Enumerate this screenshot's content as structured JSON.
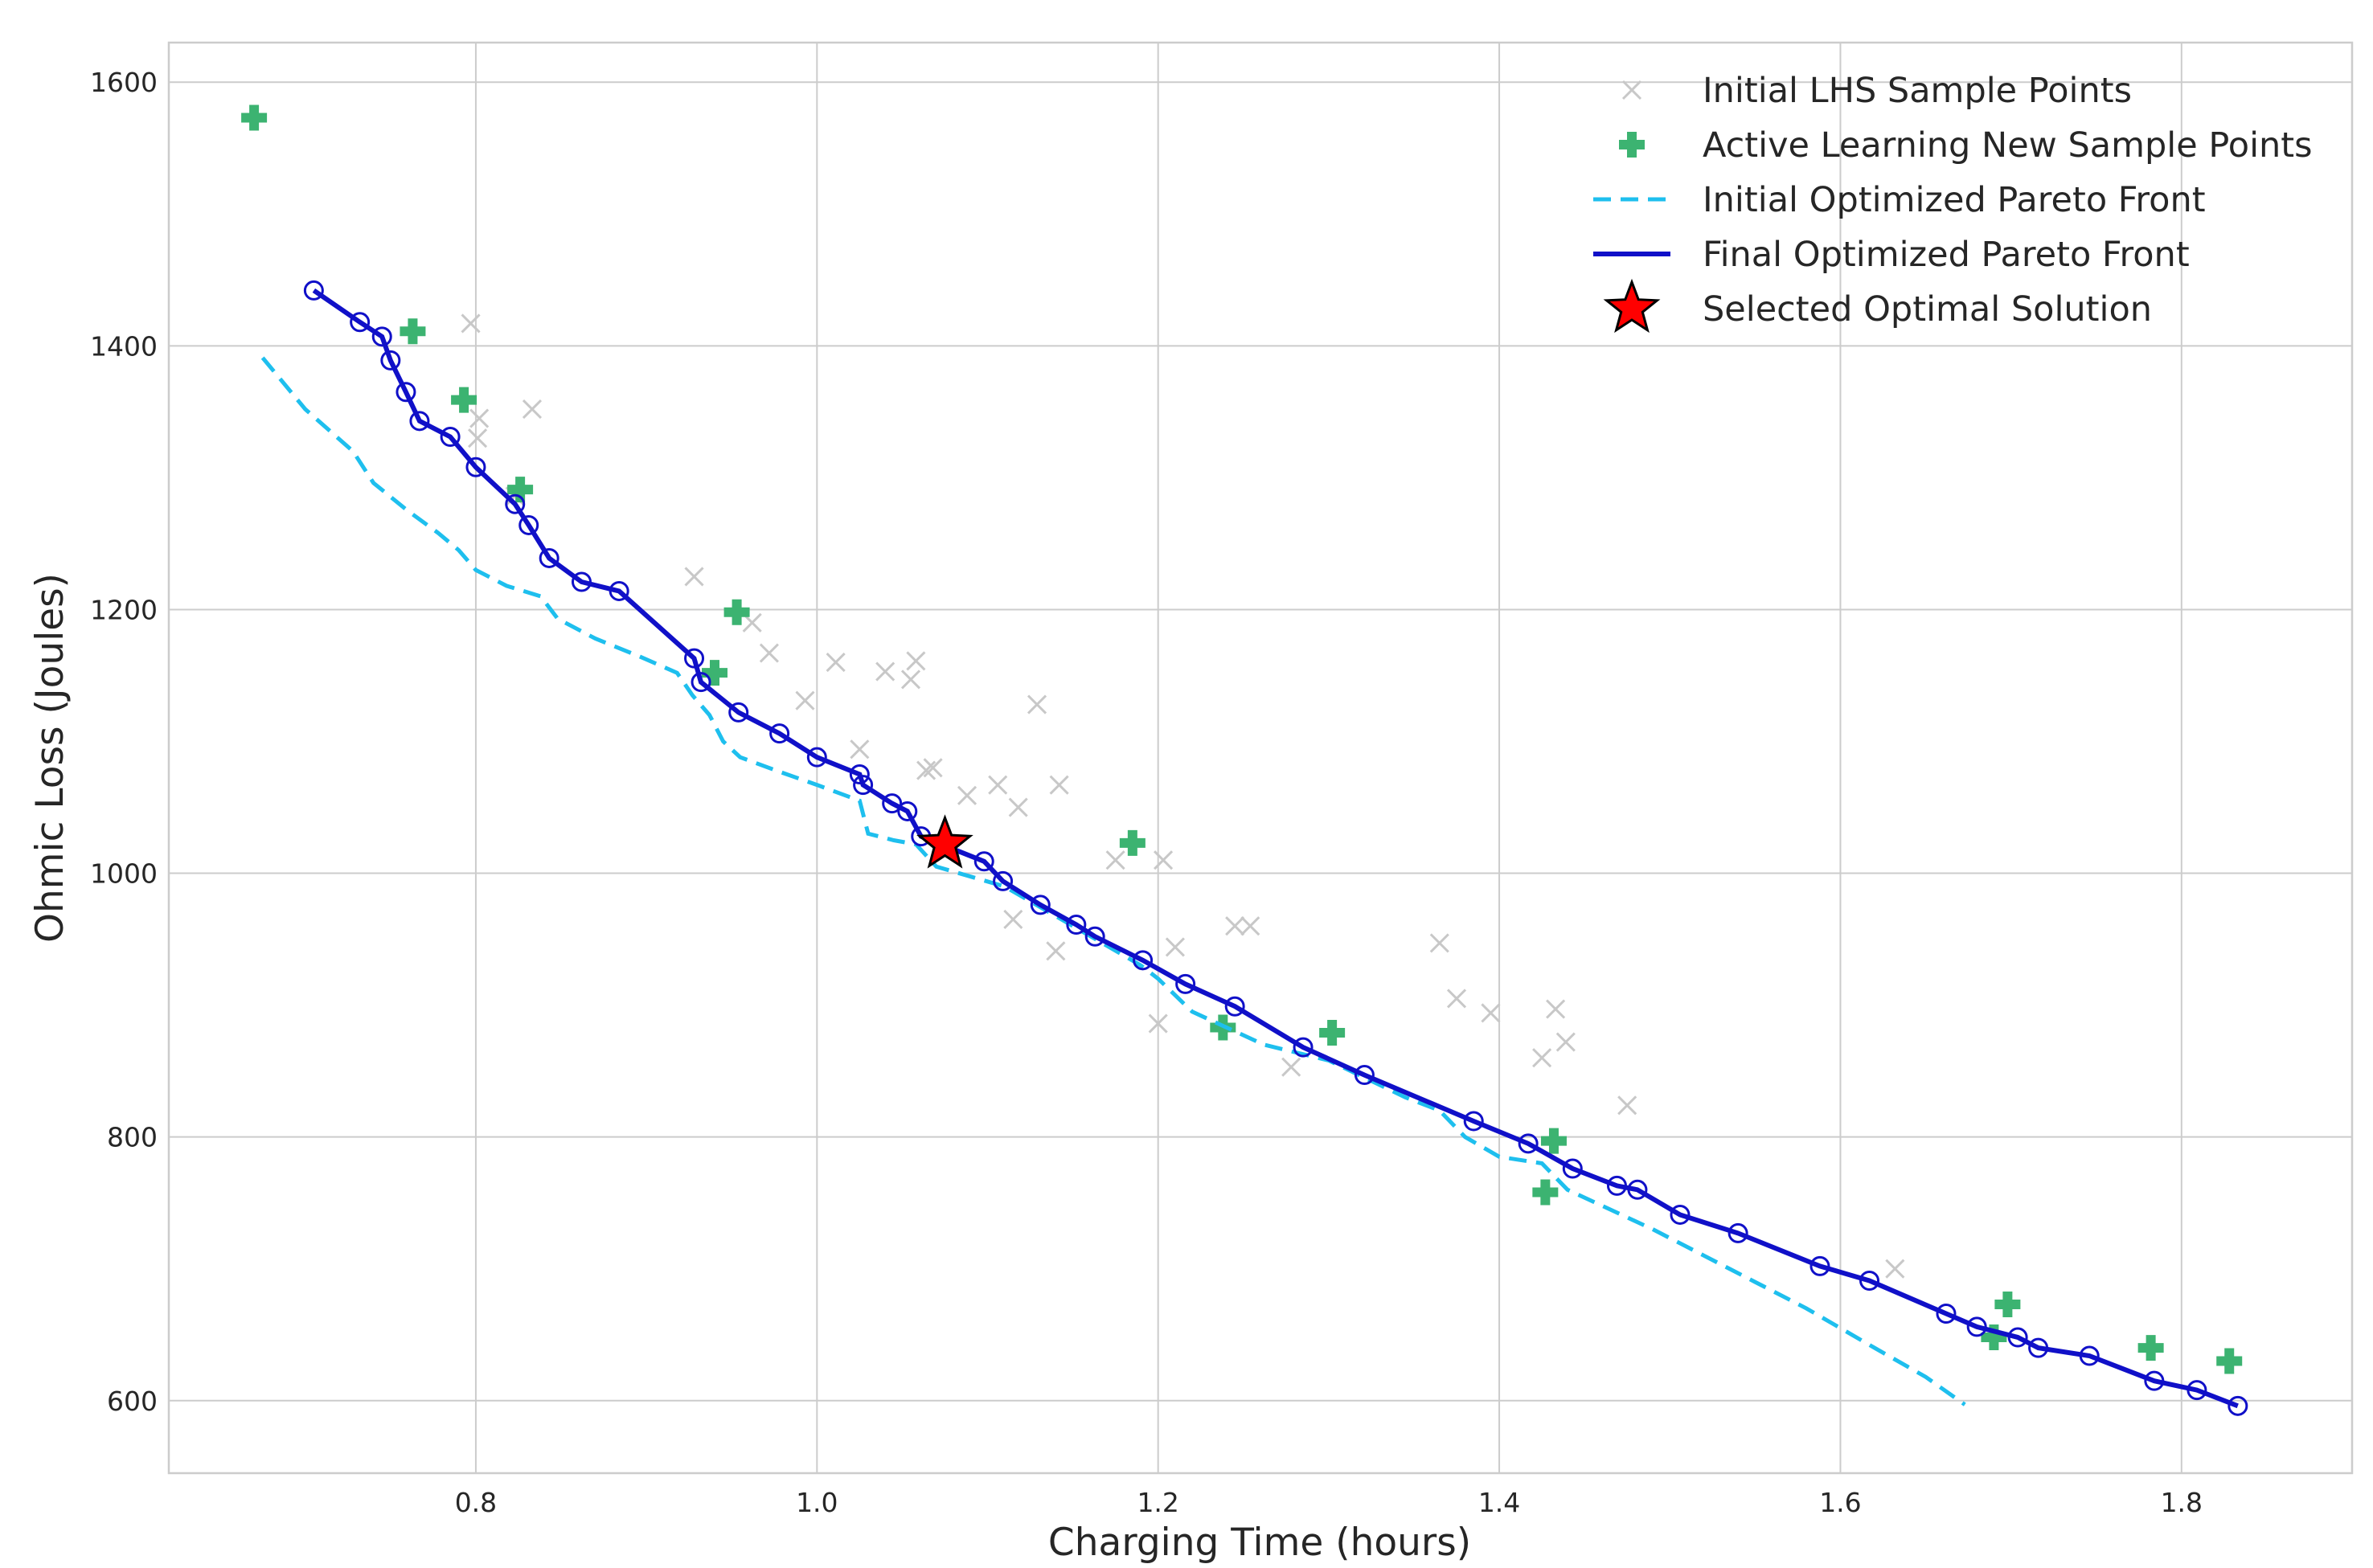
{
  "chart_data": {
    "type": "scatter",
    "xlabel": "Charging Time (hours)",
    "ylabel": "Ohmic Loss (Joules)",
    "xlim": [
      0.62,
      1.9
    ],
    "ylim": [
      545,
      1630
    ],
    "x_ticks": [
      0.8,
      1.0,
      1.2,
      1.4,
      1.6,
      1.8
    ],
    "y_ticks": [
      600,
      800,
      1000,
      1200,
      1400,
      1600
    ],
    "x_tick_labels": [
      "0.8",
      "1.0",
      "1.2",
      "1.4",
      "1.6",
      "1.8"
    ],
    "y_tick_labels": [
      "600",
      "800",
      "1000",
      "1200",
      "1400",
      "1600"
    ],
    "grid": true,
    "legend_position": "top-right",
    "series": [
      {
        "name": "Initial LHS Sample Points",
        "kind": "marker-x",
        "color": "#c8c8c8",
        "points": [
          [
            0.797,
            1417
          ],
          [
            0.802,
            1345
          ],
          [
            0.801,
            1330
          ],
          [
            0.833,
            1352
          ],
          [
            0.823,
            1286
          ],
          [
            0.928,
            1225
          ],
          [
            0.962,
            1190
          ],
          [
            0.972,
            1167
          ],
          [
            1.011,
            1160
          ],
          [
            1.058,
            1161
          ],
          [
            1.04,
            1153
          ],
          [
            1.055,
            1147
          ],
          [
            0.993,
            1131
          ],
          [
            1.129,
            1128
          ],
          [
            1.025,
            1094
          ],
          [
            1.068,
            1080
          ],
          [
            1.064,
            1078
          ],
          [
            1.106,
            1067
          ],
          [
            1.142,
            1067
          ],
          [
            1.088,
            1059
          ],
          [
            1.118,
            1050
          ],
          [
            1.175,
            1010
          ],
          [
            1.203,
            1010
          ],
          [
            1.115,
            965
          ],
          [
            1.14,
            941
          ],
          [
            1.21,
            944
          ],
          [
            1.245,
            960
          ],
          [
            1.254,
            960
          ],
          [
            1.2,
            886
          ],
          [
            1.278,
            853
          ],
          [
            1.365,
            947
          ],
          [
            1.375,
            905
          ],
          [
            1.395,
            894
          ],
          [
            1.433,
            897
          ],
          [
            1.439,
            872
          ],
          [
            1.425,
            860
          ],
          [
            1.475,
            824
          ],
          [
            1.632,
            700
          ]
        ]
      },
      {
        "name": "Active Learning New Sample Points",
        "kind": "marker-plus",
        "color": "#3cb371",
        "points": [
          [
            0.67,
            1573
          ],
          [
            0.763,
            1411
          ],
          [
            0.793,
            1359
          ],
          [
            0.826,
            1291
          ],
          [
            0.953,
            1198
          ],
          [
            0.94,
            1152
          ],
          [
            1.185,
            1023
          ],
          [
            1.238,
            883
          ],
          [
            1.302,
            879
          ],
          [
            1.432,
            797
          ],
          [
            1.427,
            758
          ],
          [
            1.698,
            673
          ],
          [
            1.69,
            648
          ],
          [
            1.782,
            640
          ],
          [
            1.828,
            630
          ]
        ]
      },
      {
        "name": "Initial Optimized Pareto Front",
        "kind": "line-dashed",
        "color": "#1ebfee",
        "points": [
          [
            0.675,
            1391
          ],
          [
            0.7,
            1352
          ],
          [
            0.728,
            1320
          ],
          [
            0.74,
            1296
          ],
          [
            0.76,
            1275
          ],
          [
            0.778,
            1258
          ],
          [
            0.79,
            1245
          ],
          [
            0.8,
            1230
          ],
          [
            0.818,
            1218
          ],
          [
            0.838,
            1210
          ],
          [
            0.848,
            1193
          ],
          [
            0.87,
            1178
          ],
          [
            0.895,
            1165
          ],
          [
            0.918,
            1152
          ],
          [
            0.927,
            1135
          ],
          [
            0.937,
            1120
          ],
          [
            0.945,
            1100
          ],
          [
            0.955,
            1088
          ],
          [
            0.978,
            1077
          ],
          [
            1.0,
            1067
          ],
          [
            1.025,
            1055
          ],
          [
            1.03,
            1030
          ],
          [
            1.045,
            1025
          ],
          [
            1.058,
            1022
          ],
          [
            1.07,
            1005
          ],
          [
            1.11,
            990
          ],
          [
            1.15,
            960
          ],
          [
            1.19,
            930
          ],
          [
            1.2,
            920
          ],
          [
            1.22,
            895
          ],
          [
            1.262,
            870
          ],
          [
            1.3,
            858
          ],
          [
            1.345,
            830
          ],
          [
            1.365,
            820
          ],
          [
            1.38,
            800
          ],
          [
            1.4,
            785
          ],
          [
            1.425,
            780
          ],
          [
            1.44,
            760
          ],
          [
            1.49,
            730
          ],
          [
            1.52,
            710
          ],
          [
            1.55,
            690
          ],
          [
            1.58,
            670
          ],
          [
            1.62,
            640
          ],
          [
            1.65,
            618
          ],
          [
            1.673,
            597
          ]
        ]
      },
      {
        "name": "Final Optimized Pareto Front",
        "kind": "line-circles",
        "color": "#1010c8",
        "points": [
          [
            0.705,
            1442
          ],
          [
            0.732,
            1418
          ],
          [
            0.745,
            1407
          ],
          [
            0.75,
            1389
          ],
          [
            0.759,
            1365
          ],
          [
            0.767,
            1343
          ],
          [
            0.785,
            1331
          ],
          [
            0.8,
            1308
          ],
          [
            0.823,
            1280
          ],
          [
            0.831,
            1264
          ],
          [
            0.843,
            1239
          ],
          [
            0.862,
            1221
          ],
          [
            0.884,
            1214
          ],
          [
            0.928,
            1163
          ],
          [
            0.932,
            1145
          ],
          [
            0.954,
            1122
          ],
          [
            0.978,
            1106
          ],
          [
            1.0,
            1088
          ],
          [
            1.025,
            1075
          ],
          [
            1.027,
            1067
          ],
          [
            1.044,
            1053
          ],
          [
            1.053,
            1047
          ],
          [
            1.061,
            1028
          ],
          [
            1.098,
            1009
          ],
          [
            1.109,
            994
          ],
          [
            1.131,
            976
          ],
          [
            1.152,
            961
          ],
          [
            1.163,
            952
          ],
          [
            1.191,
            934
          ],
          [
            1.216,
            916
          ],
          [
            1.245,
            899
          ],
          [
            1.285,
            868
          ],
          [
            1.321,
            847
          ],
          [
            1.385,
            812
          ],
          [
            1.417,
            795
          ],
          [
            1.443,
            776
          ],
          [
            1.469,
            763
          ],
          [
            1.481,
            760
          ],
          [
            1.506,
            741
          ],
          [
            1.54,
            727
          ],
          [
            1.588,
            702
          ],
          [
            1.617,
            691
          ],
          [
            1.662,
            666
          ],
          [
            1.68,
            656
          ],
          [
            1.704,
            648
          ],
          [
            1.716,
            640
          ],
          [
            1.746,
            634
          ],
          [
            1.784,
            615
          ],
          [
            1.809,
            608
          ],
          [
            1.833,
            596
          ]
        ]
      },
      {
        "name": "Selected Optimal Solution",
        "kind": "marker-star",
        "color": "#ff0000",
        "points": [
          [
            1.075,
            1022
          ]
        ]
      }
    ]
  }
}
